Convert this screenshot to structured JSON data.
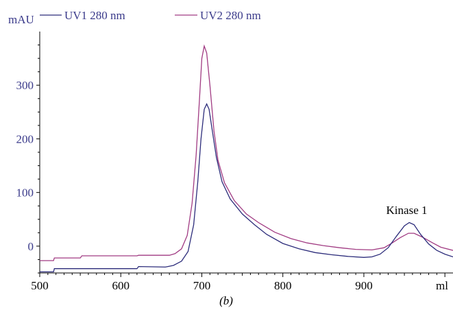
{
  "chart_data": {
    "type": "line",
    "y_unit": "mAU",
    "x_unit": "ml",
    "caption": "(b)",
    "xlim": [
      500,
      1010
    ],
    "ylim": [
      -50,
      400
    ],
    "x_ticks": [
      500,
      600,
      700,
      800,
      900
    ],
    "y_ticks": [
      0,
      100,
      200,
      300
    ],
    "legend_position": "top",
    "series": [
      {
        "name": "UV1 280 nm",
        "color": "#2b2b7a",
        "points": [
          [
            500,
            -48
          ],
          [
            517,
            -48
          ],
          [
            518,
            -42
          ],
          [
            620,
            -42
          ],
          [
            622,
            -38
          ],
          [
            655,
            -39
          ],
          [
            665,
            -36
          ],
          [
            675,
            -28
          ],
          [
            683,
            -10
          ],
          [
            690,
            40
          ],
          [
            695,
            120
          ],
          [
            699,
            200
          ],
          [
            703,
            255
          ],
          [
            706,
            265
          ],
          [
            709,
            255
          ],
          [
            713,
            215
          ],
          [
            718,
            165
          ],
          [
            725,
            120
          ],
          [
            735,
            88
          ],
          [
            750,
            60
          ],
          [
            765,
            40
          ],
          [
            780,
            22
          ],
          [
            800,
            5
          ],
          [
            820,
            -5
          ],
          [
            840,
            -12
          ],
          [
            860,
            -16
          ],
          [
            880,
            -19
          ],
          [
            900,
            -21
          ],
          [
            910,
            -20
          ],
          [
            920,
            -15
          ],
          [
            930,
            -3
          ],
          [
            940,
            18
          ],
          [
            950,
            38
          ],
          [
            956,
            44
          ],
          [
            962,
            40
          ],
          [
            970,
            22
          ],
          [
            980,
            4
          ],
          [
            990,
            -8
          ],
          [
            1000,
            -15
          ],
          [
            1010,
            -20
          ]
        ]
      },
      {
        "name": "UV2 280 nm",
        "color": "#a03a82",
        "points": [
          [
            500,
            -27
          ],
          [
            517,
            -27
          ],
          [
            518,
            -22
          ],
          [
            550,
            -22
          ],
          [
            552,
            -18
          ],
          [
            620,
            -18
          ],
          [
            622,
            -17
          ],
          [
            660,
            -17
          ],
          [
            667,
            -14
          ],
          [
            675,
            -5
          ],
          [
            682,
            20
          ],
          [
            688,
            80
          ],
          [
            693,
            170
          ],
          [
            697,
            270
          ],
          [
            700,
            350
          ],
          [
            703,
            373
          ],
          [
            706,
            360
          ],
          [
            710,
            300
          ],
          [
            715,
            215
          ],
          [
            720,
            160
          ],
          [
            728,
            118
          ],
          [
            740,
            85
          ],
          [
            755,
            60
          ],
          [
            770,
            44
          ],
          [
            790,
            26
          ],
          [
            810,
            14
          ],
          [
            830,
            6
          ],
          [
            850,
            1
          ],
          [
            870,
            -3
          ],
          [
            890,
            -6
          ],
          [
            910,
            -7
          ],
          [
            925,
            -3
          ],
          [
            935,
            6
          ],
          [
            945,
            16
          ],
          [
            955,
            24
          ],
          [
            962,
            24
          ],
          [
            972,
            17
          ],
          [
            985,
            6
          ],
          [
            995,
            -2
          ],
          [
            1010,
            -8
          ]
        ]
      }
    ],
    "annotations": [
      {
        "text": "Kinase 1",
        "x": 958,
        "y": 52
      }
    ]
  }
}
